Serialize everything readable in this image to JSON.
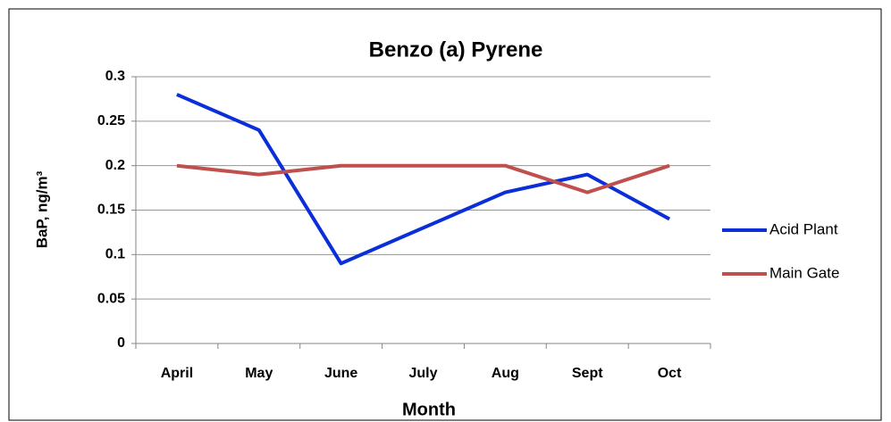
{
  "chart_data": {
    "type": "line",
    "title": "Benzo (a) Pyrene",
    "x_label": "Month",
    "y_label": "BaP, ng/m³",
    "categories": [
      "April",
      "May",
      "June",
      "July",
      "Aug",
      "Sept",
      "Oct"
    ],
    "series": [
      {
        "name": "Acid Plant",
        "color": "#0a2ed8",
        "values": [
          0.28,
          0.24,
          0.09,
          0.13,
          0.17,
          0.19,
          0.14
        ]
      },
      {
        "name": "Main Gate",
        "color": "#c0504d",
        "values": [
          0.2,
          0.19,
          0.2,
          0.2,
          0.2,
          0.17,
          0.2
        ]
      }
    ],
    "ylim": [
      0,
      0.3
    ],
    "yticks": [
      0,
      0.05,
      0.1,
      0.15,
      0.2,
      0.25,
      0.3
    ],
    "grid": true,
    "legend": "right"
  }
}
